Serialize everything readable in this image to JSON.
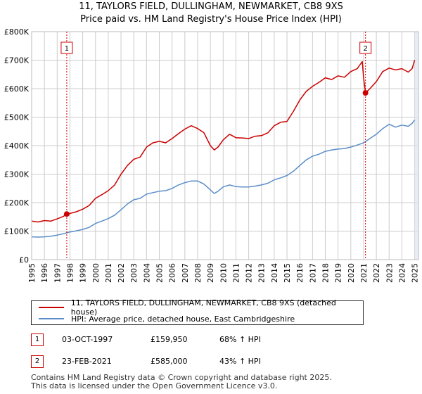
{
  "title_line1": "11, TAYLORS FIELD, DULLINGHAM, NEWMARKET, CB8 9XS",
  "title_line2": "Price paid vs. HM Land Registry's House Price Index (HPI)",
  "colors": {
    "property": "#cc0000",
    "hpi": "#5b8ec9",
    "shade": "#dde6f3",
    "grid": "#cccccc"
  },
  "chart_data": {
    "type": "line",
    "title": "11, TAYLORS FIELD, DULLINGHAM, NEWMARKET, CB8 9XS — Price paid vs. HM Land Registry's House Price Index (HPI)",
    "xlabel": "",
    "ylabel": "",
    "xlim": [
      1995,
      2025.3
    ],
    "ylim": [
      0,
      800000
    ],
    "y_ticks": [
      0,
      100000,
      200000,
      300000,
      400000,
      500000,
      600000,
      700000,
      800000
    ],
    "y_tick_labels": [
      "£0",
      "£100K",
      "£200K",
      "£300K",
      "£400K",
      "£500K",
      "£600K",
      "£700K",
      "£800K"
    ],
    "x_ticks": [
      1995,
      1996,
      1997,
      1998,
      1999,
      2000,
      2001,
      2002,
      2003,
      2004,
      2005,
      2006,
      2007,
      2008,
      2009,
      2010,
      2011,
      2012,
      2013,
      2014,
      2015,
      2016,
      2017,
      2018,
      2019,
      2020,
      2021,
      2022,
      2023,
      2024,
      2025
    ],
    "x_tick_labels": [
      "1995",
      "1996",
      "1997",
      "1998",
      "1999",
      "2000",
      "2001",
      "2002",
      "2003",
      "2004",
      "2005",
      "2006",
      "2007",
      "2008",
      "2009",
      "2010",
      "2011",
      "2012",
      "2013",
      "2014",
      "2015",
      "2016",
      "2017",
      "2018",
      "2019",
      "2020",
      "2021",
      "2022",
      "2023",
      "2024",
      "2025"
    ],
    "series": [
      {
        "name": "11, TAYLORS FIELD, DULLINGHAM, NEWMARKET, CB8 9XS (detached house)",
        "color": "#cc0000",
        "x": [
          1995.0,
          1995.5,
          1996.0,
          1996.5,
          1997.0,
          1997.5,
          1997.75,
          1998.0,
          1998.5,
          1999.0,
          1999.5,
          2000.0,
          2000.5,
          2001.0,
          2001.5,
          2002.0,
          2002.5,
          2003.0,
          2003.5,
          2004.0,
          2004.5,
          2005.0,
          2005.5,
          2006.0,
          2006.5,
          2007.0,
          2007.5,
          2008.0,
          2008.5,
          2009.0,
          2009.3,
          2009.6,
          2010.0,
          2010.5,
          2011.0,
          2011.5,
          2012.0,
          2012.5,
          2013.0,
          2013.5,
          2014.0,
          2014.5,
          2015.0,
          2015.5,
          2016.0,
          2016.5,
          2017.0,
          2017.5,
          2018.0,
          2018.5,
          2019.0,
          2019.5,
          2020.0,
          2020.5,
          2020.9,
          2021.0,
          2021.15,
          2021.5,
          2022.0,
          2022.5,
          2023.0,
          2023.5,
          2024.0,
          2024.5,
          2024.8,
          2025.0
        ],
        "values": [
          135000,
          132000,
          137000,
          135000,
          143000,
          152000,
          159950,
          162000,
          168000,
          177000,
          190000,
          215000,
          228000,
          242000,
          262000,
          300000,
          330000,
          352000,
          360000,
          395000,
          410000,
          415000,
          410000,
          425000,
          442000,
          458000,
          470000,
          460000,
          445000,
          400000,
          385000,
          395000,
          420000,
          440000,
          428000,
          427000,
          425000,
          433000,
          435000,
          445000,
          470000,
          482000,
          485000,
          520000,
          560000,
          590000,
          608000,
          622000,
          638000,
          632000,
          645000,
          640000,
          660000,
          670000,
          695000,
          640000,
          585000,
          600000,
          625000,
          660000,
          672000,
          666000,
          670000,
          658000,
          670000,
          700000
        ]
      },
      {
        "name": "HPI: Average price, detached house, East Cambridgeshire",
        "color": "#5b8ec9",
        "x": [
          1995.0,
          1995.5,
          1996.0,
          1996.5,
          1997.0,
          1997.5,
          1998.0,
          1998.5,
          1999.0,
          1999.5,
          2000.0,
          2000.5,
          2001.0,
          2001.5,
          2002.0,
          2002.5,
          2003.0,
          2003.5,
          2004.0,
          2004.5,
          2005.0,
          2005.5,
          2006.0,
          2006.5,
          2007.0,
          2007.5,
          2008.0,
          2008.5,
          2009.0,
          2009.3,
          2009.6,
          2010.0,
          2010.5,
          2011.0,
          2011.5,
          2012.0,
          2012.5,
          2013.0,
          2013.5,
          2014.0,
          2014.5,
          2015.0,
          2015.5,
          2016.0,
          2016.5,
          2017.0,
          2017.5,
          2018.0,
          2018.5,
          2019.0,
          2019.5,
          2020.0,
          2020.5,
          2021.0,
          2021.5,
          2022.0,
          2022.5,
          2023.0,
          2023.5,
          2024.0,
          2024.5,
          2024.8,
          2025.0
        ],
        "values": [
          80000,
          79000,
          80000,
          82000,
          86000,
          91000,
          97000,
          101000,
          106000,
          113000,
          127000,
          135000,
          144000,
          156000,
          175000,
          195000,
          210000,
          215000,
          230000,
          235000,
          240000,
          242000,
          250000,
          262000,
          270000,
          276000,
          276000,
          265000,
          245000,
          232000,
          240000,
          255000,
          262000,
          256000,
          255000,
          255000,
          258000,
          262000,
          268000,
          280000,
          287000,
          295000,
          310000,
          330000,
          350000,
          363000,
          370000,
          380000,
          385000,
          388000,
          390000,
          395000,
          402000,
          410000,
          425000,
          440000,
          460000,
          475000,
          465000,
          472000,
          468000,
          478000,
          490000
        ]
      }
    ],
    "annotations": [
      {
        "label": "1",
        "x": 1997.75,
        "value": 159950
      },
      {
        "label": "2",
        "x": 2021.15,
        "value": 585000
      }
    ],
    "shaded_region_after": 2025.0,
    "legend_position": "below"
  },
  "legend": {
    "property_label": "11, TAYLORS FIELD, DULLINGHAM, NEWMARKET, CB8 9XS (detached house)",
    "hpi_label": "HPI: Average price, detached house, East Cambridgeshire"
  },
  "transactions": [
    {
      "num": "1",
      "date": "03-OCT-1997",
      "price": "£159,950",
      "hpi": "68% ↑ HPI"
    },
    {
      "num": "2",
      "date": "23-FEB-2021",
      "price": "£585,000",
      "hpi": "43% ↑ HPI"
    }
  ],
  "footer": {
    "line1": "Contains HM Land Registry data © Crown copyright and database right 2025.",
    "line2": "This data is licensed under the Open Government Licence v3.0."
  }
}
